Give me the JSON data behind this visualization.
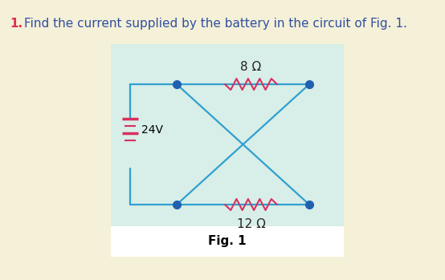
{
  "bg_color": "#f5f0d8",
  "panel_color": "#d8eee8",
  "title_color_number": "#e03050",
  "title_color_text": "#3050a0",
  "fig_label": "Fig. 1",
  "circuit_line_color": "#30a0d0",
  "resistor_color": "#d83060",
  "dot_color": "#2060b0",
  "battery_color": "#d83060",
  "label_8ohm": "8 Ω",
  "label_12ohm": "12 Ω",
  "label_24V": "24V"
}
